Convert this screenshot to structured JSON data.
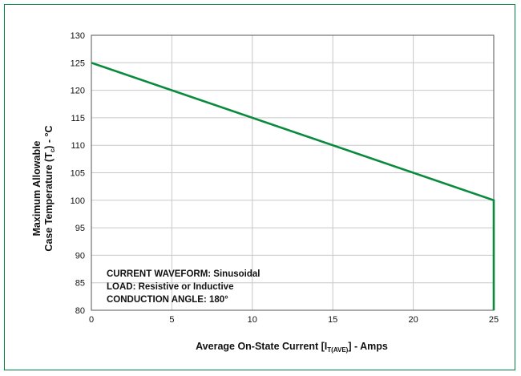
{
  "colors": {
    "frame": "#00843d",
    "series": "#0a8a3c",
    "grid": "#c8c8c8",
    "axis": "#555555"
  },
  "chart_data": {
    "type": "line",
    "xlabel_main": "Average On-State Current [I",
    "xlabel_sub": "T(AVE)",
    "xlabel_tail": "] - Amps",
    "ylabel_line1": "Maximum Allowable",
    "ylabel_line2_main": "Case Temperature (T",
    "ylabel_line2_sub": "c",
    "ylabel_line2_tail": ") - °C",
    "xlim": [
      0,
      25
    ],
    "ylim": [
      80,
      130
    ],
    "x_ticks": [
      0,
      5,
      10,
      15,
      20,
      25
    ],
    "y_ticks": [
      80,
      85,
      90,
      95,
      100,
      105,
      110,
      115,
      120,
      125,
      130
    ],
    "grid": true,
    "series": [
      {
        "x": [
          0,
          25,
          25
        ],
        "y": [
          125,
          100,
          80
        ]
      }
    ],
    "annotations": [
      "CURRENT WAVEFORM: Sinusoidal",
      "LOAD: Resistive or Inductive",
      "CONDUCTION ANGLE: 180°"
    ]
  }
}
